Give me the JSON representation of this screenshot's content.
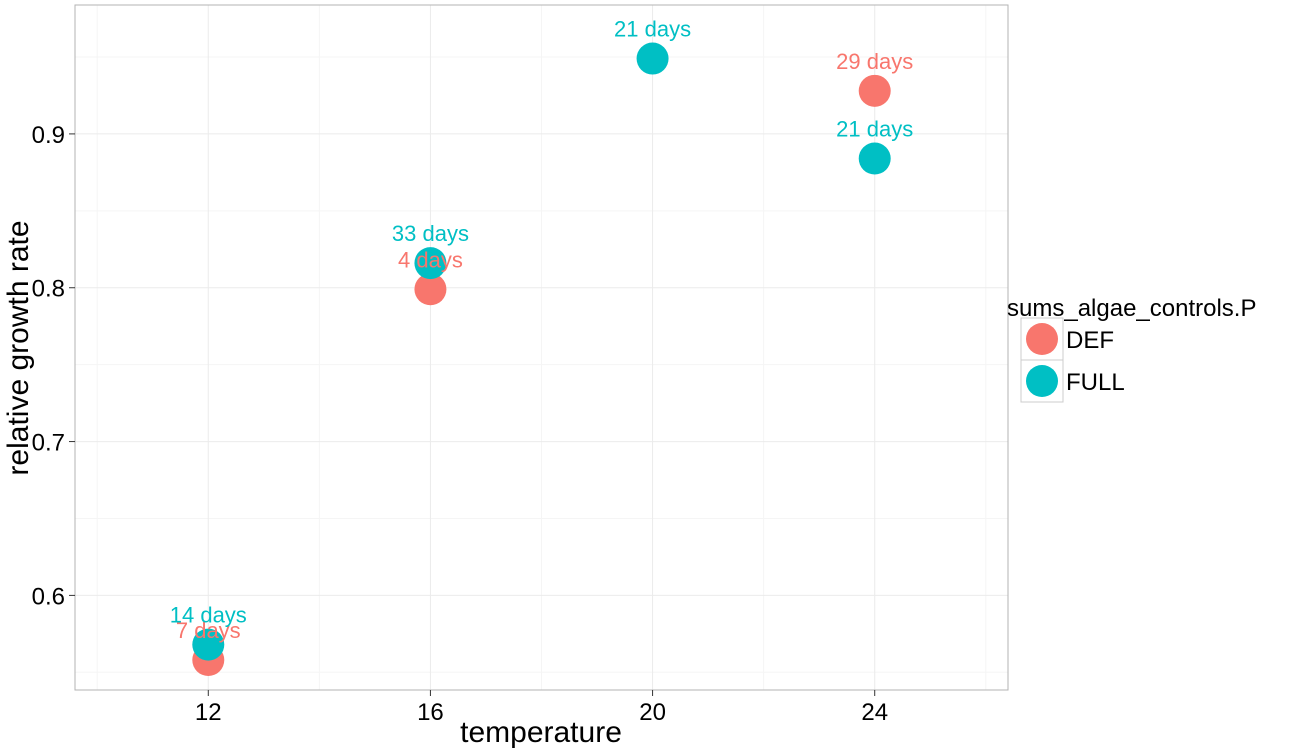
{
  "chart_data": {
    "type": "scatter",
    "title": "",
    "xlabel": "temperature",
    "ylabel": "relative growth rate",
    "xlim": [
      9.6,
      26.4
    ],
    "ylim": [
      0.5385,
      0.9838
    ],
    "x_ticks": [
      12,
      16,
      20,
      24
    ],
    "y_ticks": [
      0.6,
      0.7,
      0.8,
      0.9
    ],
    "x_tick_labels": [
      "12",
      "16",
      "20",
      "24"
    ],
    "y_tick_labels": [
      "0.6",
      "0.7",
      "0.8",
      "0.9"
    ],
    "grid": true,
    "legend": {
      "title": "sums_algae_controls.P",
      "position": "right"
    },
    "series": [
      {
        "name": "DEF",
        "color": "#F8766D",
        "points": [
          {
            "x": 12,
            "y": 0.558,
            "label": "7 days"
          },
          {
            "x": 16,
            "y": 0.799,
            "label": "4 days"
          },
          {
            "x": 24,
            "y": 0.928,
            "label": "29 days"
          }
        ]
      },
      {
        "name": "FULL",
        "color": "#00BFC4",
        "points": [
          {
            "x": 12,
            "y": 0.568,
            "label": "14 days"
          },
          {
            "x": 16,
            "y": 0.816,
            "label": "33 days"
          },
          {
            "x": 20,
            "y": 0.949,
            "label": "21 days"
          },
          {
            "x": 24,
            "y": 0.884,
            "label": "21 days"
          }
        ]
      }
    ]
  }
}
